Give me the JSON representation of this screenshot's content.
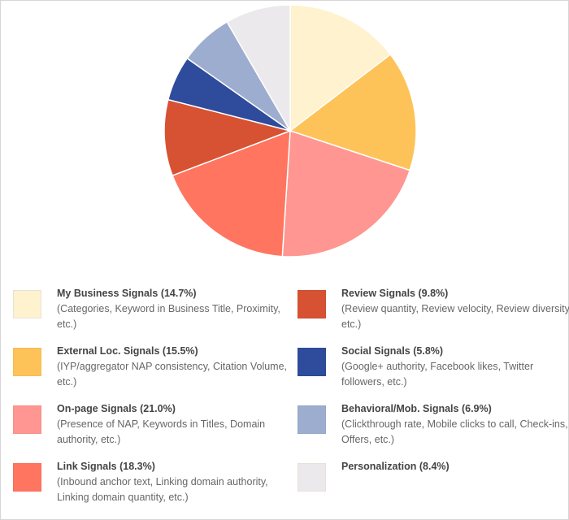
{
  "chart_data": {
    "type": "pie",
    "title": "",
    "start_angle_deg": 0,
    "direction": "clockwise",
    "legend_position": "bottom",
    "categories": [
      "My Business Signals",
      "External Loc. Signals",
      "On-page Signals",
      "Link Signals",
      "Review Signals",
      "Social Signals",
      "Behavioral/Mob. Signals",
      "Personalization"
    ],
    "values": [
      14.7,
      15.5,
      21.0,
      18.3,
      9.8,
      5.8,
      6.9,
      8.4
    ],
    "colors": [
      "#fff2cf",
      "#fec358",
      "#ff9691",
      "#ff7560",
      "#d65232",
      "#2f4b9c",
      "#9dadcf",
      "#ebe9eb"
    ],
    "unit": "%"
  },
  "legend": {
    "items": [
      {
        "title": "My Business Signals (14.7%)",
        "desc": "(Categories, Keyword in Business Title, Proximity, etc.)",
        "color": "#fff2cf"
      },
      {
        "title": "External Loc. Signals (15.5%)",
        "desc": "(IYP/aggregator NAP consistency, Citation Volume, etc.)",
        "color": "#fec358"
      },
      {
        "title": "On-page Signals (21.0%)",
        "desc": "(Presence of NAP, Keywords in Titles, Domain authority, etc.)",
        "color": "#ff9691"
      },
      {
        "title": "Link Signals (18.3%)",
        "desc": "(Inbound anchor text, Linking domain authority, Linking domain quantity, etc.)",
        "color": "#ff7560"
      },
      {
        "title": "Review Signals (9.8%)",
        "desc": "(Review quantity, Review velocity, Review diversity, etc.)",
        "color": "#d65232"
      },
      {
        "title": "Social Signals (5.8%)",
        "desc": "(Google+ authority, Facebook likes, Twitter followers, etc.)",
        "color": "#2f4b9c"
      },
      {
        "title": "Behavioral/Mob. Signals (6.9%)",
        "desc": "(Clickthrough rate, Mobile clicks to call, Check-ins, Offers, etc.)",
        "color": "#9dadcf"
      },
      {
        "title": "Personalization (8.4%)",
        "desc": "",
        "color": "#ebe9eb"
      }
    ]
  }
}
